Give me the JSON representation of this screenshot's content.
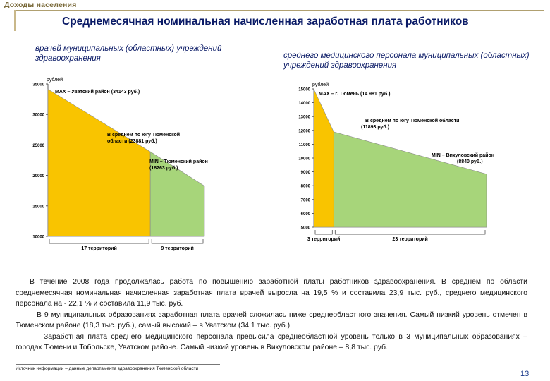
{
  "header": {
    "section": "Доходы населения",
    "title": "Среднемесячная номинальная начисленная заработная плата работников"
  },
  "colors": {
    "yellow": "#f9c400",
    "green": "#a7d57a",
    "title": "#0a1a66"
  },
  "chart_data": [
    {
      "type": "area",
      "title": "врачей муниципальных (областных) учреждений здравоохранения",
      "ylabel": "рублей",
      "ylim": [
        10000,
        35000
      ],
      "yticks": [
        10000,
        15000,
        20000,
        25000,
        30000,
        35000
      ],
      "ytick_labels": [
        "10000",
        "15000",
        "20000",
        "25000",
        "30000",
        "35000"
      ],
      "x_count": 26,
      "series": [
        {
          "name": "17 территорий",
          "color": "#f9c400",
          "x": [
            0,
            17
          ],
          "values": [
            34143,
            23881
          ]
        },
        {
          "name": "9 территорий",
          "color": "#a7d57a",
          "x": [
            17,
            26
          ],
          "values": [
            23881,
            18263
          ]
        }
      ],
      "annotations": [
        {
          "text": "MAX – Уватский район (34143 руб.)"
        },
        {
          "text": "В среднем по югу Тюменской",
          "text2": "области (23881 руб.)"
        },
        {
          "text": "MIN – Тюменский район",
          "text2": "(18263 руб.)"
        }
      ],
      "bracket_labels": [
        "17 территорий",
        "9 территорий"
      ]
    },
    {
      "type": "area",
      "title": "среднего медицинского персонала муниципальных (областных) учреждений здравоохранения",
      "ylabel": "рублей",
      "ylim": [
        5000,
        15000
      ],
      "yticks": [
        5000,
        6000,
        7000,
        8000,
        9000,
        10000,
        11000,
        12000,
        13000,
        14000,
        15000
      ],
      "ytick_labels": [
        "5000",
        "6000",
        "7000",
        "8000",
        "9000",
        "10000",
        "11000",
        "12000",
        "13000",
        "14000",
        "15000"
      ],
      "x_count": 26,
      "series": [
        {
          "name": "3 территорий",
          "color": "#f9c400",
          "x": [
            0,
            3
          ],
          "values": [
            14981,
            11893
          ]
        },
        {
          "name": "23 территорий",
          "color": "#a7d57a",
          "x": [
            3,
            26
          ],
          "values": [
            11893,
            8840
          ]
        }
      ],
      "annotations": [
        {
          "text": "MAX – г. Тюмень (14 981 руб.)"
        },
        {
          "text": "В среднем по югу Тюменской области",
          "text2": "(11893 руб.)"
        },
        {
          "text": "MIN – Викуловский район",
          "text2": "(8840 руб.)"
        }
      ],
      "bracket_labels": [
        "3 территорий",
        "23 территорий"
      ]
    }
  ],
  "body": {
    "p1": "В течение 2008 года продолжалась работа по повышению заработной платы работников здравоохранения. В среднем по области среднемесячная номинальная начисленная заработная плата врачей выросла на 19,5 % и составила 23,9 тыс. руб., среднего медицинского персонала на - 22,1 % и составила 11,9 тыс. руб.",
    "p2": "В 9 муниципальных образованиях заработная плата врачей сложилась ниже среднеобластного значения. Самый низкий уровень отмечен в Тюменском районе (18,3 тыс. руб.), самый высокий – в Уватском (34,1 тыс. руб.).",
    "p3": "Заработная плата среднего медицинского персонала превысила среднеобластной уровень только в 3 муниципальных образованиях – городах Тюмени и Тобольске, Уватском районе. Самый низкий уровень в Викуловском районе – 8,8 тыс. руб."
  },
  "footer": {
    "source": "Источник информации – данные департамента здравоохранения Тюменской области",
    "page": "13"
  }
}
